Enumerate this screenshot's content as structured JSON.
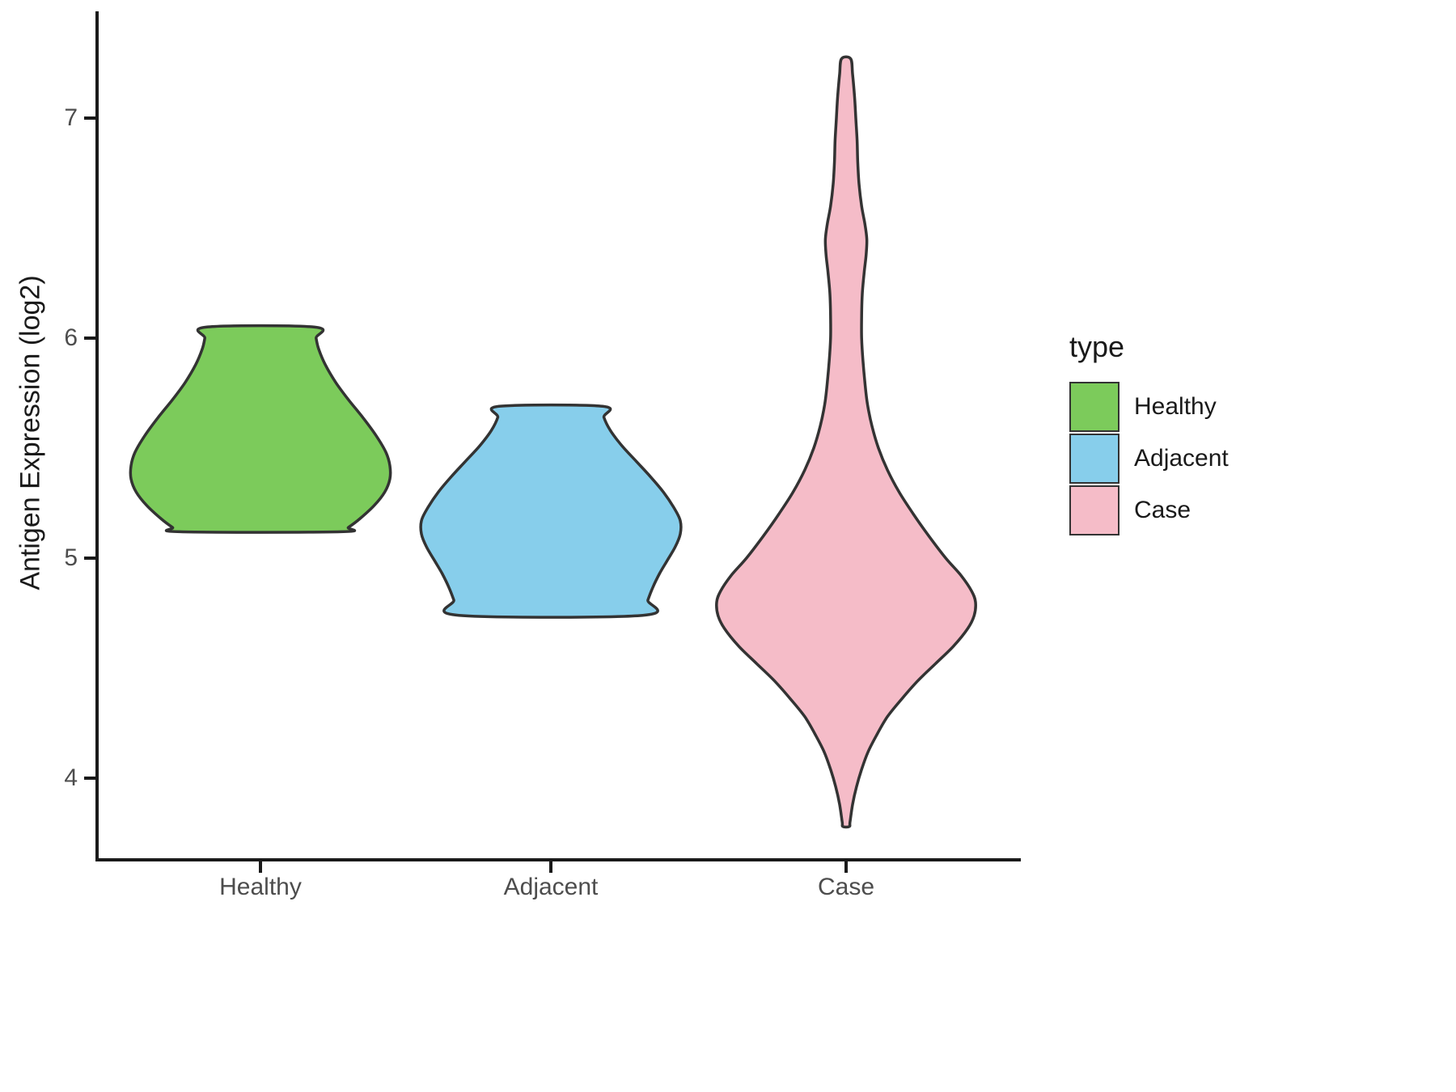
{
  "chart_data": {
    "type": "violin",
    "title": "",
    "xlabel": "",
    "ylabel": "Antigen Expression (log2)",
    "categories": [
      "Healthy",
      "Adjacent",
      "Case"
    ],
    "y_ticks": [
      "7",
      "6",
      "5",
      "4"
    ],
    "y_tick_values": [
      7,
      6,
      5,
      4
    ],
    "ylim": [
      3.6,
      7.4
    ],
    "grid": "off",
    "legend": {
      "title": "type",
      "position": "right",
      "entries": [
        {
          "label": "Healthy",
          "color": "#7CCB5B"
        },
        {
          "label": "Adjacent",
          "color": "#87CEEB"
        },
        {
          "label": "Case",
          "color": "#F5BCC8"
        }
      ]
    },
    "series": [
      {
        "name": "Healthy",
        "color": "#7CCB5B",
        "outline": "#333333",
        "y_range": [
          5.12,
          6.05
        ],
        "peak_y": 5.4,
        "profile": [
          [
            6.05,
            0.42
          ],
          [
            6.0,
            0.43
          ],
          [
            5.95,
            0.45
          ],
          [
            5.88,
            0.5
          ],
          [
            5.8,
            0.58
          ],
          [
            5.72,
            0.68
          ],
          [
            5.64,
            0.79
          ],
          [
            5.56,
            0.89
          ],
          [
            5.48,
            0.97
          ],
          [
            5.42,
            1.0
          ],
          [
            5.36,
            1.0
          ],
          [
            5.3,
            0.96
          ],
          [
            5.24,
            0.88
          ],
          [
            5.18,
            0.77
          ],
          [
            5.14,
            0.68
          ],
          [
            5.12,
            0.62
          ]
        ]
      },
      {
        "name": "Adjacent",
        "color": "#87CEEB",
        "outline": "#333333",
        "y_range": [
          4.74,
          5.69
        ],
        "peak_y": 5.15,
        "profile": [
          [
            5.69,
            0.4
          ],
          [
            5.64,
            0.41
          ],
          [
            5.58,
            0.46
          ],
          [
            5.51,
            0.55
          ],
          [
            5.44,
            0.66
          ],
          [
            5.37,
            0.77
          ],
          [
            5.3,
            0.87
          ],
          [
            5.23,
            0.95
          ],
          [
            5.17,
            1.0
          ],
          [
            5.11,
            1.0
          ],
          [
            5.05,
            0.96
          ],
          [
            4.99,
            0.9
          ],
          [
            4.93,
            0.84
          ],
          [
            4.87,
            0.79
          ],
          [
            4.81,
            0.75
          ],
          [
            4.74,
            0.71
          ]
        ]
      },
      {
        "name": "Case",
        "color": "#F5BCC8",
        "outline": "#333333",
        "y_range": [
          3.78,
          7.27
        ],
        "peak_y": 4.8,
        "profile": [
          [
            7.27,
            0.035
          ],
          [
            7.2,
            0.05
          ],
          [
            7.1,
            0.065
          ],
          [
            7.0,
            0.075
          ],
          [
            6.9,
            0.085
          ],
          [
            6.8,
            0.09
          ],
          [
            6.7,
            0.1
          ],
          [
            6.6,
            0.12
          ],
          [
            6.52,
            0.145
          ],
          [
            6.45,
            0.16
          ],
          [
            6.38,
            0.155
          ],
          [
            6.3,
            0.14
          ],
          [
            6.2,
            0.125
          ],
          [
            6.1,
            0.12
          ],
          [
            6.0,
            0.12
          ],
          [
            5.9,
            0.13
          ],
          [
            5.8,
            0.145
          ],
          [
            5.7,
            0.165
          ],
          [
            5.6,
            0.2
          ],
          [
            5.5,
            0.25
          ],
          [
            5.4,
            0.32
          ],
          [
            5.3,
            0.41
          ],
          [
            5.2,
            0.52
          ],
          [
            5.1,
            0.64
          ],
          [
            5.0,
            0.77
          ],
          [
            4.92,
            0.89
          ],
          [
            4.85,
            0.97
          ],
          [
            4.8,
            1.0
          ],
          [
            4.74,
            0.99
          ],
          [
            4.68,
            0.94
          ],
          [
            4.6,
            0.83
          ],
          [
            4.52,
            0.69
          ],
          [
            4.44,
            0.55
          ],
          [
            4.36,
            0.43
          ],
          [
            4.28,
            0.32
          ],
          [
            4.2,
            0.24
          ],
          [
            4.12,
            0.17
          ],
          [
            4.04,
            0.12
          ],
          [
            3.96,
            0.08
          ],
          [
            3.88,
            0.05
          ],
          [
            3.8,
            0.03
          ],
          [
            3.78,
            0.025
          ]
        ]
      }
    ]
  },
  "colors": {
    "axis": "#1a1a1a",
    "tick_label": "#4d4d4d",
    "background": "#ffffff"
  }
}
